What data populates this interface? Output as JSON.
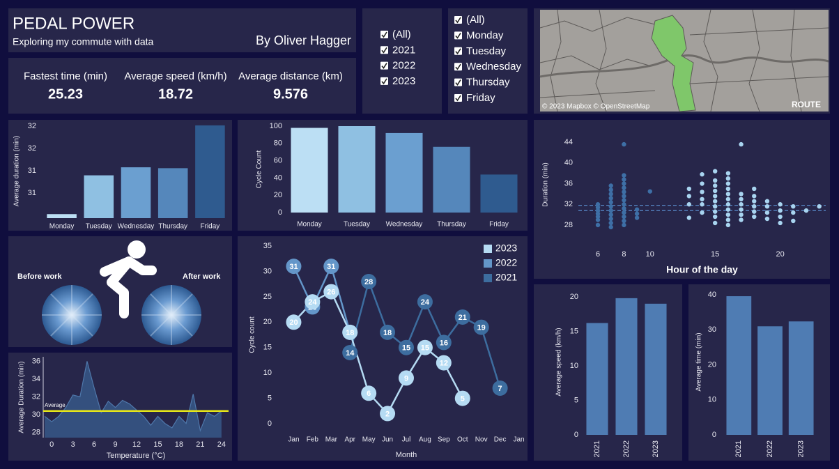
{
  "header": {
    "title": "PEDAL POWER",
    "subtitle": "Exploring my commute with data",
    "author": "By Oliver Hagger"
  },
  "kpis": [
    {
      "label": "Fastest time (min)",
      "value": 25.23
    },
    {
      "label": "Average speed (km/h)",
      "value": 18.72
    },
    {
      "label": "Average distance (km)",
      "value": 9.576
    }
  ],
  "filters": {
    "years": [
      "(All)",
      "2021",
      "2022",
      "2023"
    ],
    "days": [
      "(All)",
      "Monday",
      "Tuesday",
      "Wednesday",
      "Thursday",
      "Friday"
    ]
  },
  "map": {
    "credit": "© 2023 Mapbox © OpenStreetMap",
    "label": "ROUTE"
  },
  "commute": {
    "before": "Before work",
    "after": "After work"
  },
  "chart_data": [
    {
      "type": "bar",
      "ylabel": "Average duration (min)",
      "categories": [
        "Monday",
        "Tuesday",
        "Wednesday",
        "Thursday",
        "Friday"
      ],
      "values": [
        30.03,
        30.9,
        31.08,
        31.06,
        32.02
      ],
      "colors": [
        "#bcdff4",
        "#8fc0e2",
        "#6b9fd0",
        "#5587bb",
        "#2f5b8f"
      ],
      "ylim": [
        29.94,
        32.05
      ],
      "yticks": [
        {
          "value": 30.5,
          "label": "31"
        },
        31,
        {
          "value": 31.5,
          "label": "32"
        },
        32
      ]
    },
    {
      "type": "bar",
      "ylabel": "Cycle Count",
      "categories": [
        "Monday",
        "Tuesday",
        "Wednesday",
        "Thursday",
        "Friday"
      ],
      "values": [
        98,
        100,
        92,
        76,
        44
      ],
      "colors": [
        "#bcdff4",
        "#8fc0e2",
        "#6b9fd0",
        "#5587bb",
        "#2f5b8f"
      ],
      "ylim": [
        0,
        100
      ],
      "yticks": [
        0,
        20,
        40,
        60,
        80,
        100
      ]
    },
    {
      "type": "scatter",
      "xlabel": "Hour of the day",
      "ylabel": "Duration (min)",
      "xlim": [
        4.5,
        23.5
      ],
      "ylim": [
        25.7,
        45.9
      ],
      "xticks": [
        6,
        8,
        10,
        15,
        20
      ],
      "yticks": [
        28,
        32,
        36,
        40,
        44
      ],
      "series": [
        {
          "color": "#3e6fa6",
          "x": [
            6,
            6,
            6,
            6,
            6,
            6,
            6,
            7,
            7,
            7,
            7,
            7,
            7,
            7,
            7,
            7,
            7,
            7,
            8,
            8,
            8,
            8,
            8,
            8,
            8,
            8,
            8,
            8,
            8,
            8,
            8,
            8,
            9,
            9,
            9,
            10
          ],
          "y": [
            28,
            29,
            29.6,
            30.2,
            30.8,
            31.4,
            32,
            27.6,
            28.4,
            29.2,
            30,
            30.8,
            31.6,
            32.4,
            33.2,
            34,
            34.8,
            35.6,
            28,
            28.8,
            29.6,
            30.4,
            31.2,
            32,
            32.8,
            33.6,
            34.4,
            35.2,
            36,
            36.8,
            37.6,
            43.6,
            29.4,
            30.2,
            31,
            34.5
          ]
        },
        {
          "color": "#a8d4f0",
          "x": [
            13,
            13,
            13,
            13,
            14,
            14,
            14,
            14,
            14,
            14,
            15,
            15,
            15,
            15,
            15,
            15,
            15,
            15,
            15,
            15,
            16,
            16,
            16,
            16,
            16,
            16,
            16,
            16,
            16,
            16,
            16,
            17,
            17,
            17,
            17,
            17,
            17,
            17,
            18,
            18,
            18,
            18,
            18,
            18,
            19,
            19,
            19,
            19,
            20,
            20,
            20,
            20,
            21,
            21,
            21,
            22,
            23
          ],
          "y": [
            29.4,
            32,
            33.6,
            35,
            30.4,
            32,
            33,
            34.4,
            36,
            37.8,
            28.4,
            29.6,
            30.6,
            31.6,
            32.6,
            33.6,
            34.6,
            35.6,
            36.6,
            38.4,
            28,
            29,
            30,
            31,
            32,
            33,
            34,
            35,
            36,
            37,
            38,
            29,
            30,
            31,
            32,
            33,
            34,
            43.6,
            29.6,
            30.6,
            31.6,
            32.6,
            33.6,
            35,
            29.2,
            30.4,
            31.6,
            32.6,
            28.4,
            29.6,
            30.8,
            32,
            28.8,
            30.4,
            31.6,
            30.8,
            31.6
          ]
        }
      ],
      "reference_lines": [
        31.8,
        30.8
      ],
      "reference_color": "#5b8fd0"
    },
    {
      "type": "area",
      "xlabel": "Temperature (°C)",
      "ylabel": "Average Duration (min)",
      "x": [
        -1,
        0,
        1,
        2,
        3,
        4,
        5,
        6,
        7,
        8,
        9,
        10,
        11,
        12,
        13,
        14,
        15,
        16,
        17,
        18,
        19,
        20,
        21,
        22,
        23,
        24
      ],
      "values": [
        29.8,
        29.2,
        29.8,
        30.8,
        32.2,
        32,
        36,
        33,
        30.2,
        31.5,
        30.8,
        31.6,
        31.2,
        30.5,
        29.8,
        28.8,
        29.8,
        29,
        28.5,
        29.8,
        29,
        32.3,
        28.2,
        30.2,
        29.8,
        30.4
      ],
      "color": "#34507e",
      "line_color": "#4f78ab",
      "xlim": [
        -1.2,
        25
      ],
      "ylim": [
        27.4,
        36.5
      ],
      "xticks": [
        0,
        3,
        6,
        9,
        12,
        15,
        18,
        21,
        24
      ],
      "yticks": [
        28,
        30,
        32,
        34,
        36
      ],
      "average": {
        "label": "Average",
        "value": 30.4,
        "color": "#e6e619"
      }
    },
    {
      "type": "line",
      "ylabel": "Cycle count",
      "xlabel": "Month",
      "categories": [
        "Jan",
        "Feb",
        "Mar",
        "Apr",
        "May",
        "Jun",
        "Jul",
        "Aug",
        "Sep",
        "Oct",
        "Nov",
        "Dec",
        "Jan"
      ],
      "ylim": [
        0,
        35
      ],
      "yticks": [
        0,
        5,
        10,
        15,
        20,
        25,
        30,
        35
      ],
      "legend": "top-right",
      "series": [
        {
          "name": "2023",
          "color": "#b5dbf3",
          "values": [
            20,
            24,
            26,
            18,
            6,
            2,
            9,
            15,
            12,
            5,
            null,
            null,
            null
          ]
        },
        {
          "name": "2022",
          "color": "#6496c9",
          "values": [
            31,
            23,
            31,
            18,
            null,
            null,
            null,
            null,
            null,
            null,
            null,
            null,
            null
          ]
        },
        {
          "name": "2021",
          "color": "#3d6d9f",
          "values": [
            null,
            null,
            null,
            14,
            28,
            18,
            15,
            24,
            16,
            21,
            19,
            7,
            null
          ]
        }
      ]
    },
    {
      "type": "bar",
      "ylabel": "Average speed (km/h)",
      "categories": [
        "2021",
        "2022",
        "2023"
      ],
      "values": [
        16.2,
        19.8,
        19.0
      ],
      "color": "#4f7cb3",
      "ylim": [
        0,
        21.1
      ],
      "yticks": [
        0,
        5,
        10,
        15,
        20
      ]
    },
    {
      "type": "bar",
      "ylabel": "Average time (min)",
      "categories": [
        "2021",
        "2022",
        "2023"
      ],
      "values": [
        39.6,
        31.0,
        32.4
      ],
      "color": "#4f7cb3",
      "ylim": [
        0,
        41.6
      ],
      "yticks": [
        0,
        10,
        20,
        30,
        40
      ]
    }
  ]
}
